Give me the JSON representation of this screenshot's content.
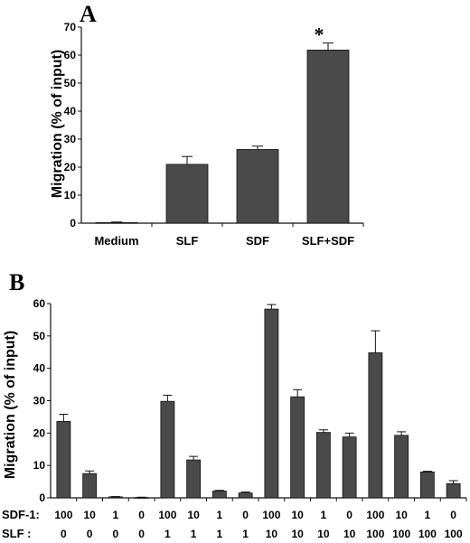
{
  "chart_data": [
    {
      "panel": "A",
      "type": "bar",
      "ylabel": "Migration (% of input)",
      "ylim": [
        0,
        70
      ],
      "yticks": [
        0,
        10,
        20,
        30,
        40,
        50,
        60,
        70
      ],
      "categories": [
        "Medium",
        "SLF",
        "SDF",
        "SLF+SDF"
      ],
      "values": [
        0.2,
        21,
        26.3,
        61.8
      ],
      "errors": [
        0.2,
        2.8,
        1.2,
        2.5
      ],
      "annotations": [
        {
          "category": "SLF+SDF",
          "text": "*"
        }
      ],
      "bar_color": "#4a4a4a",
      "grid": false
    },
    {
      "panel": "B",
      "type": "bar",
      "ylabel": "Migration (% of input)",
      "ylim": [
        0,
        60
      ],
      "yticks": [
        0,
        10,
        20,
        30,
        40,
        50,
        60
      ],
      "row_labels": [
        "SDF-1:",
        "SLF  :"
      ],
      "sdf1": [
        "100",
        "10",
        "1",
        "0",
        "100",
        "10",
        "1",
        "0",
        "100",
        "10",
        "1",
        "0",
        "100",
        "10",
        "1",
        "0"
      ],
      "slf": [
        "0",
        "0",
        "0",
        "0",
        "1",
        "1",
        "1",
        "1",
        "10",
        "10",
        "10",
        "10",
        "100",
        "100",
        "100",
        "100"
      ],
      "values": [
        23.6,
        7.5,
        0.3,
        0.1,
        29.8,
        11.7,
        2.1,
        1.5,
        58.3,
        31.2,
        20.2,
        18.8,
        44.8,
        19.3,
        8.0,
        4.4
      ],
      "errors": [
        2.2,
        0.8,
        0.1,
        0.1,
        1.9,
        1.1,
        0.2,
        0.3,
        1.4,
        2.2,
        0.8,
        1.2,
        6.8,
        1.1,
        0.2,
        0.9
      ],
      "bar_color": "#4a4a4a",
      "grid": false
    }
  ]
}
